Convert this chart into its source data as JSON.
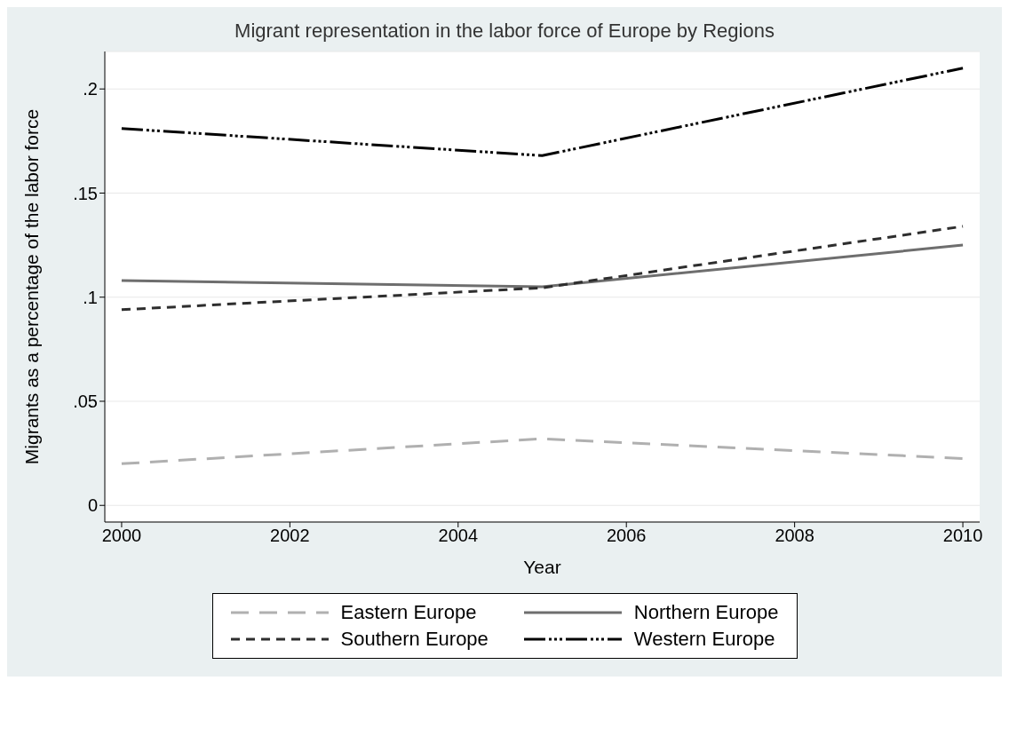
{
  "chart_data": {
    "type": "line",
    "title": "Migrant representation in the labor force of Europe by Regions",
    "xlabel": "Year",
    "ylabel": "Migrants as a percentage of the labor force",
    "x": [
      2000,
      2005,
      2010
    ],
    "series": [
      {
        "name": "Eastern Europe",
        "color": "#b0b0b0",
        "line_style": "dashed",
        "values": [
          0.02,
          0.032,
          0.0225
        ]
      },
      {
        "name": "Northern Europe",
        "color": "#6e6e6e",
        "line_style": "solid",
        "values": [
          0.108,
          0.105,
          0.125
        ]
      },
      {
        "name": "Southern Europe",
        "color": "#2e2e2e",
        "line_style": "dashed",
        "values": [
          0.094,
          0.1045,
          0.134
        ]
      },
      {
        "name": "Western Europe",
        "color": "#000000",
        "line_style": "dashed",
        "values": [
          0.181,
          0.168,
          0.21
        ]
      }
    ],
    "xlim": [
      1999.8,
      2010.2
    ],
    "xticks": [
      2000,
      2002,
      2004,
      2006,
      2008,
      2010
    ],
    "ylim": [
      -0.008,
      0.218
    ],
    "yticks": [
      {
        "value": 0,
        "label": "0"
      },
      {
        "value": 0.05,
        "label": ".05"
      },
      {
        "value": 0.1,
        "label": ".1"
      },
      {
        "value": 0.15,
        "label": ".15"
      },
      {
        "value": 0.2,
        "label": ".2"
      }
    ],
    "grid": "y",
    "legend": "bottom",
    "marker": "none"
  }
}
